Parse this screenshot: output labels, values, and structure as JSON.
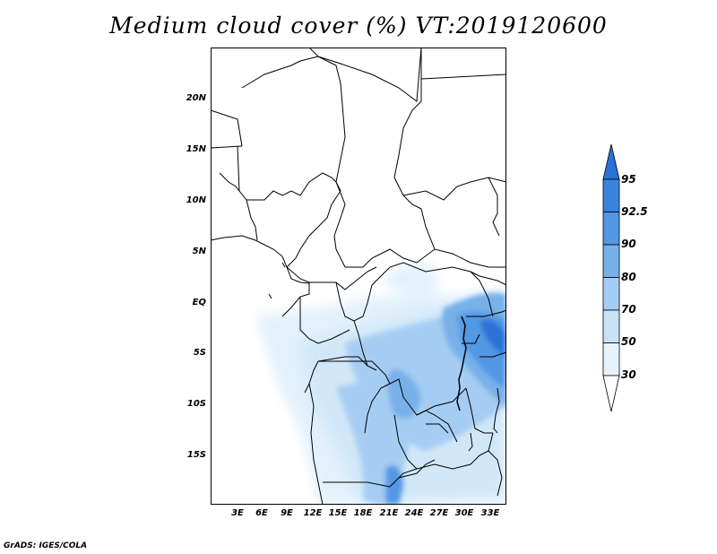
{
  "title": "Medium cloud cover (%) VT:2019120600",
  "footer": "GrADS: IGES/COLA",
  "map": {
    "lat_labels": [
      "20N",
      "15N",
      "10N",
      "5N",
      "EQ",
      "5S",
      "10S",
      "15S"
    ],
    "lon_labels": [
      "3E",
      "6E",
      "9E",
      "12E",
      "15E",
      "18E",
      "21E",
      "24E",
      "27E",
      "30E",
      "33E"
    ]
  },
  "colorbar": {
    "levels": [
      "95",
      "92.5",
      "90",
      "80",
      "70",
      "50",
      "30"
    ],
    "colors": [
      "#2a72d6",
      "#3a84dd",
      "#5298e3",
      "#78b0ea",
      "#a5cdf3",
      "#c8e2f8",
      "#e6f3fc",
      "#ffffff"
    ]
  }
}
